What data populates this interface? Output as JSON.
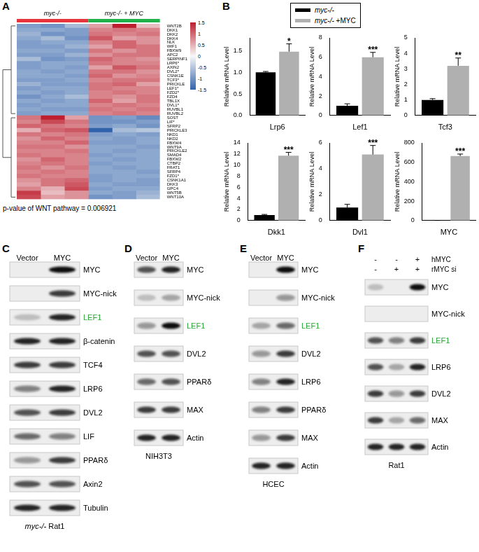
{
  "panel_labels": [
    "A",
    "B",
    "C",
    "D",
    "E",
    "F"
  ],
  "chart_data": [
    {
      "type": "heatmap",
      "column_groups": [
        {
          "name": "myc-/-",
          "color": "#e8343c",
          "columns": 3
        },
        {
          "name": "myc-/- + MYC",
          "color": "#22b24c",
          "columns": 3
        }
      ],
      "rows": [
        "WNT2B",
        "DKK1",
        "DKK2",
        "DKK4",
        "NLK",
        "WIF1",
        "FBXW9",
        "APC2",
        "SERPINF1",
        "LRP6*",
        "AXIN2",
        "DVL2*",
        "CSNK1E",
        "TCF3*",
        "PRICKLE",
        "LEF1*",
        "FZD2*",
        "FZD4",
        "TBL1X",
        "DVL1*",
        "RUVBL1",
        "RUVBL2",
        "SOST",
        "LIF*",
        "SFRP2",
        "PRICKLE3",
        "NKD1",
        "NKD2",
        "FBXW4",
        "WNT9A",
        "PRICKLE2",
        "SMAD4",
        "FBXW2",
        "CTBP2",
        "FRAT1",
        "SFRP4",
        "FZD1*",
        "CSNK1A1",
        "DKK3",
        "GPC4",
        "WNT5B",
        "WNT10A"
      ],
      "cells": [
        [
          -0.9,
          -1.0,
          -0.6,
          0.6,
          1.5,
          0.4
        ],
        [
          -0.8,
          -0.8,
          -0.9,
          0.8,
          0.9,
          0.8
        ],
        [
          -0.7,
          -1.0,
          -0.9,
          0.9,
          0.8,
          0.9
        ],
        [
          -0.8,
          -0.6,
          -1.0,
          1.1,
          0.6,
          0.7
        ],
        [
          -0.9,
          -0.8,
          -0.8,
          0.8,
          1.0,
          0.7
        ],
        [
          -0.9,
          -0.9,
          -0.7,
          0.6,
          1.0,
          0.9
        ],
        [
          -0.8,
          -0.8,
          -0.9,
          0.9,
          0.7,
          0.9
        ],
        [
          -0.9,
          -0.9,
          -0.7,
          0.7,
          0.9,
          0.9
        ],
        [
          -0.6,
          -1.0,
          -0.9,
          1.0,
          0.8,
          0.7
        ],
        [
          -0.9,
          -0.8,
          -0.8,
          0.9,
          0.8,
          0.8
        ],
        [
          -0.9,
          -0.8,
          -0.9,
          0.6,
          1.1,
          0.9
        ],
        [
          -0.8,
          -0.9,
          -0.8,
          0.9,
          0.9,
          0.7
        ],
        [
          -0.8,
          -0.8,
          -0.9,
          1.0,
          0.7,
          0.8
        ],
        [
          -0.9,
          -0.9,
          -0.8,
          0.8,
          0.9,
          0.9
        ],
        [
          -0.7,
          -0.9,
          -0.9,
          0.9,
          1.0,
          0.6
        ],
        [
          -0.9,
          -0.8,
          -0.8,
          0.9,
          0.8,
          0.8
        ],
        [
          -0.8,
          -0.9,
          -0.8,
          0.8,
          0.9,
          0.8
        ],
        [
          -1.0,
          -0.8,
          -0.6,
          0.8,
          0.7,
          0.9
        ],
        [
          -0.8,
          -0.9,
          -0.8,
          1.0,
          0.6,
          0.9
        ],
        [
          -0.9,
          -0.8,
          -0.8,
          0.8,
          0.9,
          0.8
        ],
        [
          -0.8,
          -0.9,
          -0.9,
          0.9,
          0.8,
          0.9
        ],
        [
          -0.9,
          -0.8,
          -0.8,
          0.8,
          0.9,
          0.8
        ],
        [
          0.9,
          1.5,
          0.6,
          -1.0,
          -0.9,
          -1.1
        ],
        [
          0.8,
          1.2,
          0.9,
          -1.0,
          -1.0,
          -0.9
        ],
        [
          1.0,
          0.9,
          0.8,
          -0.9,
          -0.8,
          -1.0
        ],
        [
          0.5,
          1.0,
          1.1,
          -1.5,
          -0.6,
          -0.5
        ],
        [
          0.9,
          0.8,
          0.9,
          -0.9,
          -0.8,
          -0.9
        ],
        [
          0.7,
          1.0,
          0.8,
          -0.8,
          -0.9,
          -0.8
        ],
        [
          0.8,
          0.8,
          1.0,
          -0.9,
          -0.9,
          -0.8
        ],
        [
          0.9,
          0.9,
          0.7,
          -0.8,
          -0.8,
          -0.9
        ],
        [
          0.8,
          0.8,
          0.9,
          -0.8,
          -0.9,
          -0.8
        ],
        [
          0.9,
          0.8,
          0.8,
          -0.9,
          -0.8,
          -0.8
        ],
        [
          0.7,
          1.0,
          0.8,
          -0.8,
          -0.9,
          -0.8
        ],
        [
          0.8,
          0.9,
          0.8,
          -0.9,
          -0.8,
          -0.8
        ],
        [
          0.9,
          0.7,
          0.9,
          -0.8,
          -0.9,
          -0.8
        ],
        [
          0.8,
          0.9,
          0.8,
          -0.8,
          -0.8,
          -0.9
        ],
        [
          0.9,
          0.8,
          0.8,
          -0.9,
          -0.8,
          -0.8
        ],
        [
          0.7,
          0.9,
          1.0,
          -0.9,
          -0.8,
          -0.9
        ],
        [
          0.6,
          0.9,
          1.1,
          -0.8,
          -0.9,
          -0.9
        ],
        [
          0.8,
          0.5,
          1.2,
          -0.9,
          -0.8,
          -0.8
        ],
        [
          1.3,
          0.4,
          0.7,
          -0.8,
          -0.9,
          -0.7
        ],
        [
          1.2,
          0.6,
          0.7,
          -1.0,
          -0.9,
          -0.6
        ]
      ],
      "colorbar": {
        "range": [
          -1.5,
          1.5
        ],
        "ticks": [
          1.5,
          1,
          0.5,
          0,
          -0.5,
          -1,
          -1.5
        ]
      },
      "annotation": "p-value of WNT pathway = 0.006921"
    },
    {
      "type": "bar",
      "categories": [
        "Lrp6"
      ],
      "y_label": "Relative mRNA Level",
      "grid": false,
      "ylim": [
        0,
        1.8
      ],
      "yticks": [
        {
          "value": 0,
          "label": "0.0"
        },
        {
          "value": 0.5,
          "label": "0.5"
        },
        {
          "value": 1,
          "label": "1.0"
        },
        {
          "value": 1.5,
          "label": "1.5"
        }
      ],
      "series": [
        {
          "name": "myc-/-",
          "color": "#000000",
          "values": [
            1.0
          ],
          "error": [
            0.02
          ]
        },
        {
          "name": "myc-/- +MYC",
          "color": "#b0b0b0",
          "values": [
            1.48
          ],
          "error": [
            0.18
          ]
        }
      ],
      "significance": "*"
    },
    {
      "type": "bar",
      "categories": [
        "Lef1"
      ],
      "y_label": "Relative mRNA Level",
      "grid": false,
      "ylim": [
        0,
        8
      ],
      "yticks": [
        0,
        2,
        4,
        6,
        8
      ],
      "series": [
        {
          "name": "myc-/-",
          "color": "#000000",
          "values": [
            1.0
          ],
          "error": [
            0.2
          ]
        },
        {
          "name": "myc-/- +MYC",
          "color": "#b0b0b0",
          "values": [
            6.0
          ],
          "error": [
            0.5
          ]
        }
      ],
      "significance": "***"
    },
    {
      "type": "bar",
      "categories": [
        "Tcf3"
      ],
      "y_label": "Relative mRNA Level",
      "grid": false,
      "ylim": [
        0,
        5
      ],
      "yticks": [
        0,
        1,
        2,
        3,
        4,
        5
      ],
      "series": [
        {
          "name": "myc-/-",
          "color": "#000000",
          "values": [
            1.0
          ],
          "error": [
            0.08
          ]
        },
        {
          "name": "myc-/- +MYC",
          "color": "#b0b0b0",
          "values": [
            3.2
          ],
          "error": [
            0.5
          ]
        }
      ],
      "significance": "**"
    },
    {
      "type": "bar",
      "categories": [
        "Dkk1"
      ],
      "y_label": "Relative mRNA Level",
      "grid": false,
      "ylim": [
        0,
        14
      ],
      "yticks": [
        0,
        2,
        4,
        6,
        8,
        10,
        12,
        14
      ],
      "series": [
        {
          "name": "myc-/-",
          "color": "#000000",
          "values": [
            1.0
          ],
          "error": [
            0.1
          ]
        },
        {
          "name": "myc-/- +MYC",
          "color": "#b0b0b0",
          "values": [
            11.7
          ],
          "error": [
            0.6
          ]
        }
      ],
      "significance": "***"
    },
    {
      "type": "bar",
      "categories": [
        "Dvl1"
      ],
      "y_label": "Relative mRNA Level",
      "grid": false,
      "ylim": [
        0,
        6
      ],
      "yticks": [
        0,
        2,
        4,
        6
      ],
      "series": [
        {
          "name": "myc-/-",
          "color": "#000000",
          "values": [
            1.0
          ],
          "error": [
            0.25
          ]
        },
        {
          "name": "myc-/- +MYC",
          "color": "#b0b0b0",
          "values": [
            5.1
          ],
          "error": [
            0.7
          ]
        }
      ],
      "significance": "***"
    },
    {
      "type": "bar",
      "categories": [
        "MYC"
      ],
      "y_label": "Relative mRNA Level",
      "grid": false,
      "ylim": [
        0,
        800
      ],
      "yticks": [
        0,
        200,
        400,
        600,
        800
      ],
      "series": [
        {
          "name": "myc-/-",
          "color": "#000000",
          "values": [
            1
          ],
          "error": [
            0
          ]
        },
        {
          "name": "myc-/- +MYC",
          "color": "#b0b0b0",
          "values": [
            665
          ],
          "error": [
            20
          ]
        }
      ],
      "significance": "***"
    }
  ],
  "blots": [
    {
      "lanes": [
        "Vector",
        "MYC"
      ],
      "caption": "myc-/- Rat1",
      "rows": [
        {
          "name": "MYC",
          "intensity": [
            0,
            1
          ]
        },
        {
          "name": "MYC-nick",
          "intensity": [
            0,
            0.8
          ]
        },
        {
          "name": "LEF1",
          "color": "#2aa836",
          "intensity": [
            0.2,
            0.9
          ]
        },
        {
          "name": "β-catenin",
          "intensity": [
            0.9,
            0.9
          ]
        },
        {
          "name": "TCF4",
          "intensity": [
            0.8,
            0.8
          ]
        },
        {
          "name": "LRP6",
          "intensity": [
            0.5,
            0.9
          ]
        },
        {
          "name": "DVL2",
          "intensity": [
            0.7,
            0.8
          ]
        },
        {
          "name": "LIF",
          "intensity": [
            0.6,
            0.5
          ]
        },
        {
          "name": "PPARδ",
          "intensity": [
            0.4,
            0.8
          ]
        },
        {
          "name": "Axin2",
          "intensity": [
            0.7,
            0.7
          ]
        },
        {
          "name": "Tubulin",
          "intensity": [
            0.9,
            0.9
          ]
        }
      ]
    },
    {
      "lanes": [
        "Vector",
        "MYC"
      ],
      "caption": "NIH3T3",
      "rows": [
        {
          "name": "MYC",
          "intensity": [
            0.7,
            0.9
          ]
        },
        {
          "name": "MYC-nick",
          "intensity": [
            0.2,
            0.3
          ]
        },
        {
          "name": "LEF1",
          "color": "#2aa836",
          "intensity": [
            0.4,
            1
          ]
        },
        {
          "name": "DVL2",
          "intensity": [
            0.7,
            0.7
          ]
        },
        {
          "name": "PPARδ",
          "intensity": [
            0.6,
            0.7
          ]
        },
        {
          "name": "MAX",
          "intensity": [
            0.8,
            0.8
          ]
        },
        {
          "name": "Actin",
          "intensity": [
            0.9,
            0.9
          ]
        }
      ]
    },
    {
      "lanes": [
        "Vector",
        "MYC"
      ],
      "caption": "HCEC",
      "rows": [
        {
          "name": "MYC",
          "intensity": [
            0,
            1
          ]
        },
        {
          "name": "MYC-nick",
          "intensity": [
            0,
            0.4
          ]
        },
        {
          "name": "LEF1",
          "color": "#2aa836",
          "intensity": [
            0.3,
            0.6
          ]
        },
        {
          "name": "DVL2",
          "intensity": [
            0.4,
            0.8
          ]
        },
        {
          "name": "LRP6",
          "intensity": [
            0.5,
            0.9
          ]
        },
        {
          "name": "PPARδ",
          "intensity": [
            0.5,
            0.8
          ]
        },
        {
          "name": "MAX",
          "intensity": [
            0.4,
            0.8
          ]
        },
        {
          "name": "Actin",
          "intensity": [
            0.9,
            0.9
          ]
        }
      ]
    },
    {
      "conditions": [
        {
          "name": "hMYC",
          "signs": [
            "-",
            "-",
            "+"
          ]
        },
        {
          "name": "rMYC si",
          "signs": [
            "-",
            "+",
            "+"
          ]
        }
      ],
      "caption": "Rat1",
      "rows": [
        {
          "name": "MYC",
          "intensity": [
            0.2,
            0,
            1
          ]
        },
        {
          "name": "MYC-nick",
          "intensity": [
            0,
            0,
            0
          ]
        },
        {
          "name": "LEF1",
          "color": "#2aa836",
          "intensity": [
            0.7,
            0.5,
            0.8
          ]
        },
        {
          "name": "LRP6",
          "intensity": [
            0.7,
            0.3,
            0.9
          ]
        },
        {
          "name": "DVL2",
          "intensity": [
            0.8,
            0.4,
            0.8
          ]
        },
        {
          "name": "MAX",
          "intensity": [
            0.8,
            0.3,
            0.6
          ]
        },
        {
          "name": "Actin",
          "intensity": [
            0.9,
            0.9,
            0.9
          ]
        }
      ]
    }
  ]
}
